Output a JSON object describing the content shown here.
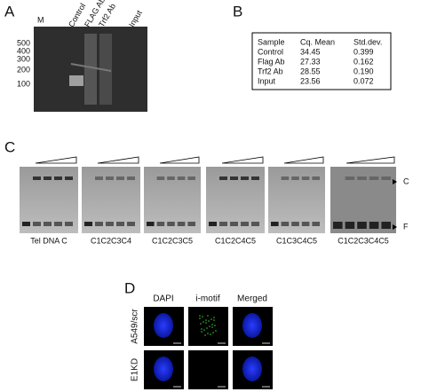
{
  "panel_a": {
    "letter": "A",
    "marker": "M",
    "lanes": [
      "Control",
      "FLAG Ab",
      "Trf2 Ab",
      "Input"
    ],
    "ladder": [
      "500",
      "400",
      "300",
      "200",
      "100"
    ]
  },
  "panel_b": {
    "letter": "B",
    "header": [
      "Sample",
      "Cq. Mean",
      "Std.dev."
    ],
    "rows": [
      [
        "Control",
        "34.45",
        "0.399"
      ],
      [
        "Flag Ab",
        "27.33",
        "0.162"
      ],
      [
        "Trf2 Ab",
        "28.55",
        "0.190"
      ],
      [
        "Input",
        "23.56",
        "0.072"
      ]
    ]
  },
  "panel_c": {
    "letter": "C",
    "lanes": [
      "Tel DNA C",
      "C1C2C3C4",
      "C1C2C3C5",
      "C1C2C4C5",
      "C1C3C4C5",
      "C1C2C3C4C5"
    ],
    "complex_label": "C",
    "free_label": "F"
  },
  "panel_d": {
    "letter": "D",
    "columns": [
      "DAPI",
      "i-motif",
      "Merged"
    ],
    "rows": [
      "A549/scr",
      "E1KD"
    ]
  }
}
